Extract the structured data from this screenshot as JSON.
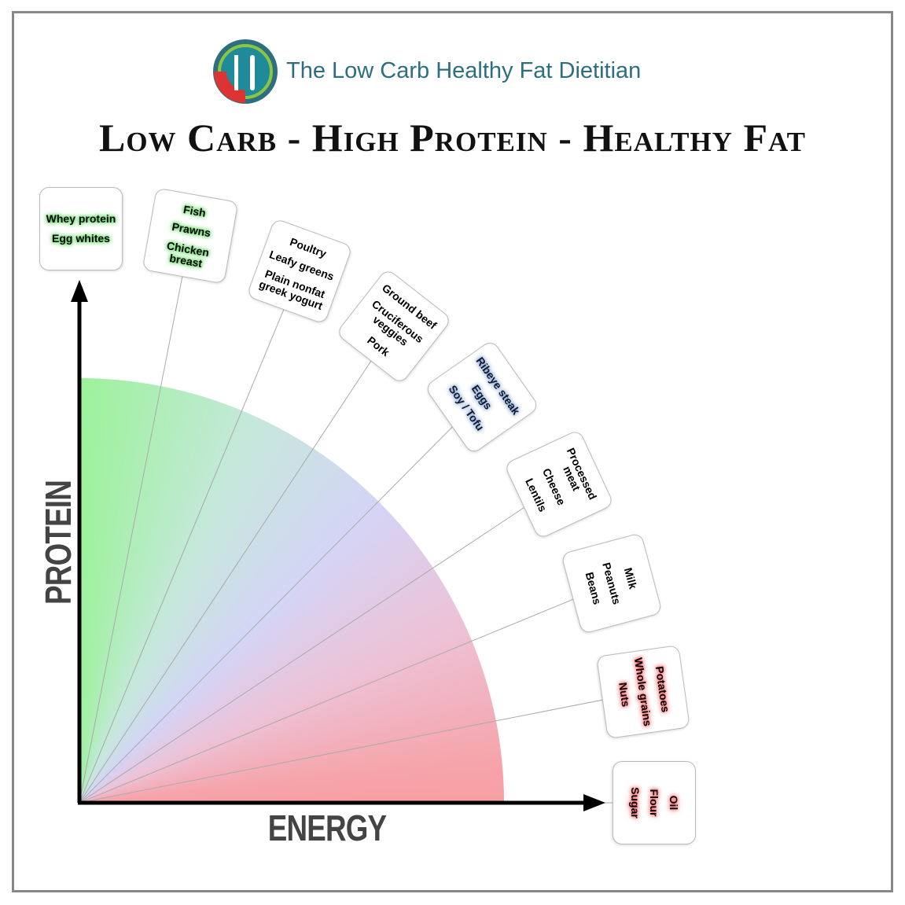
{
  "header": {
    "brand": "The Low Carb Healthy Fat Dietitian",
    "title": "Low Carb - High Protein - Healthy Fat"
  },
  "axes": {
    "y": "PROTEIN",
    "x": "ENERGY"
  },
  "boxes": [
    {
      "items": [
        "Whey protein",
        "Egg whites"
      ]
    },
    {
      "items": [
        "Fish",
        "Prawns",
        "Chicken breast"
      ]
    },
    {
      "items": [
        "Poultry",
        "Leafy greens",
        "Plain nonfat greek yogurt"
      ]
    },
    {
      "items": [
        "Ground beef",
        "Cruciferous veggies",
        "Pork"
      ]
    },
    {
      "items": [
        "Ribeye steak",
        "Eggs",
        "Soy / Tofu"
      ]
    },
    {
      "items": [
        "Processed meat",
        "Cheese",
        "Lentils"
      ]
    },
    {
      "items": [
        "Milk",
        "Peanuts",
        "Beans"
      ]
    },
    {
      "items": [
        "Potatoes",
        "Whole grains",
        "Nuts"
      ]
    },
    {
      "items": [
        "Oil",
        "Flour",
        "Sugar"
      ]
    }
  ]
}
